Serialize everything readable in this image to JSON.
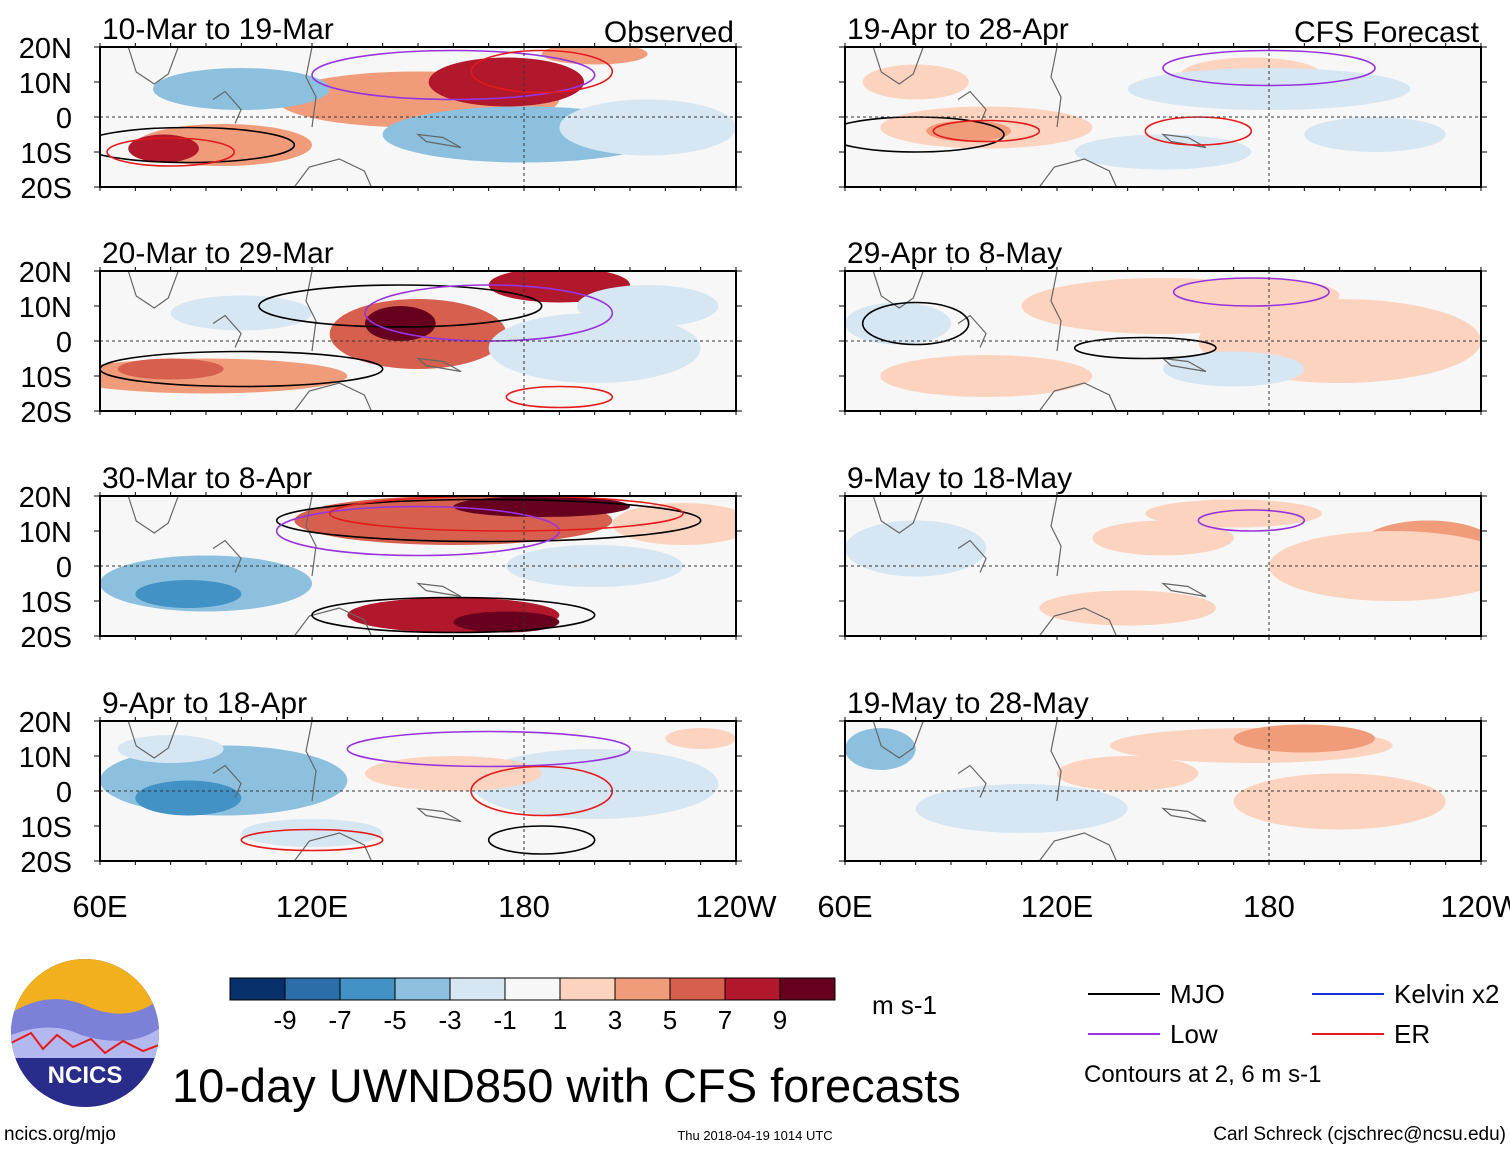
{
  "chart_data": {
    "type": "heatmap",
    "title": "10-day UWND850 with CFS forecasts",
    "variable": "UWND850",
    "units": "m s-1",
    "columns": [
      {
        "header": "Observed",
        "panels": [
          {
            "label": "10-Mar to 19-Mar",
            "anomaly": "strong westerly (red) band from 120E to 180 north of equator; westerly patch 60E-100E at 10S; easterly (blue) east of 160E south of equator"
          },
          {
            "label": "20-Mar to 29-Mar",
            "anomaly": "strong westerly over 130E-160E near equator and 180-200E at 15N; westerly band 60E-120E at 10S"
          },
          {
            "label": "30-Mar to 8-Apr",
            "anomaly": "very strong westerly 130E-190E at 10-20N and 140E-190E at 10-20S; easterly over Indian Ocean"
          },
          {
            "label": "9-Apr to 18-Apr",
            "anomaly": "easterly (blue) over Indian Ocean and central Pacific; weak westerly near 120W"
          }
        ]
      },
      {
        "header": "CFS Forecast",
        "panels": [
          {
            "label": "19-Apr to 28-Apr",
            "anomaly": "weak westerly 80E-130E near 5S; weak westerly near 180 at 10N"
          },
          {
            "label": "29-Apr to 8-May",
            "anomaly": "weak westerly 160E-120W at 10-20N and south of equator west of 140E"
          },
          {
            "label": "9-May to 18-May",
            "anomaly": "weak westerly band 160E-120W near 10-15N; weak easterly Indian Ocean"
          },
          {
            "label": "19-May to 28-May",
            "anomaly": "weak westerly 150E-200E at 10-15N; weak easterly 60E-80E"
          }
        ]
      }
    ],
    "x_axis": {
      "ticks": [
        "60E",
        "120E",
        "180",
        "120W"
      ],
      "range_deg": [
        60,
        240
      ]
    },
    "y_axis": {
      "ticks": [
        "20N",
        "10N",
        "0",
        "10S",
        "20S"
      ],
      "range_deg": [
        -20,
        20
      ]
    },
    "colorbar": {
      "labels": [
        "-9",
        "-7",
        "-5",
        "-3",
        "-1",
        "1",
        "3",
        "5",
        "7",
        "9"
      ],
      "colors": [
        "#08306b",
        "#2c6fa8",
        "#4292c6",
        "#8cc0de",
        "#d6e6f2",
        "#f7f7f7",
        "#fbd3bf",
        "#f09c7b",
        "#d6604d",
        "#b2182b",
        "#67001f"
      ],
      "units": "m s-1"
    },
    "legend": [
      {
        "label": "MJO",
        "color": "#000000"
      },
      {
        "label": "Kelvin x2",
        "color": "#1f2fd6"
      },
      {
        "label": "Low",
        "color": "#9933dd"
      },
      {
        "label": "ER",
        "color": "#e41a1c"
      }
    ],
    "contour_note": "Contours at 2, 6 m s-1",
    "footer": {
      "left": "ncics.org/mjo",
      "center": "Thu 2018-04-19 1014 UTC",
      "right": "Carl Schreck (cjschrec@ncsu.edu)"
    },
    "logo_text": "NCICS"
  }
}
